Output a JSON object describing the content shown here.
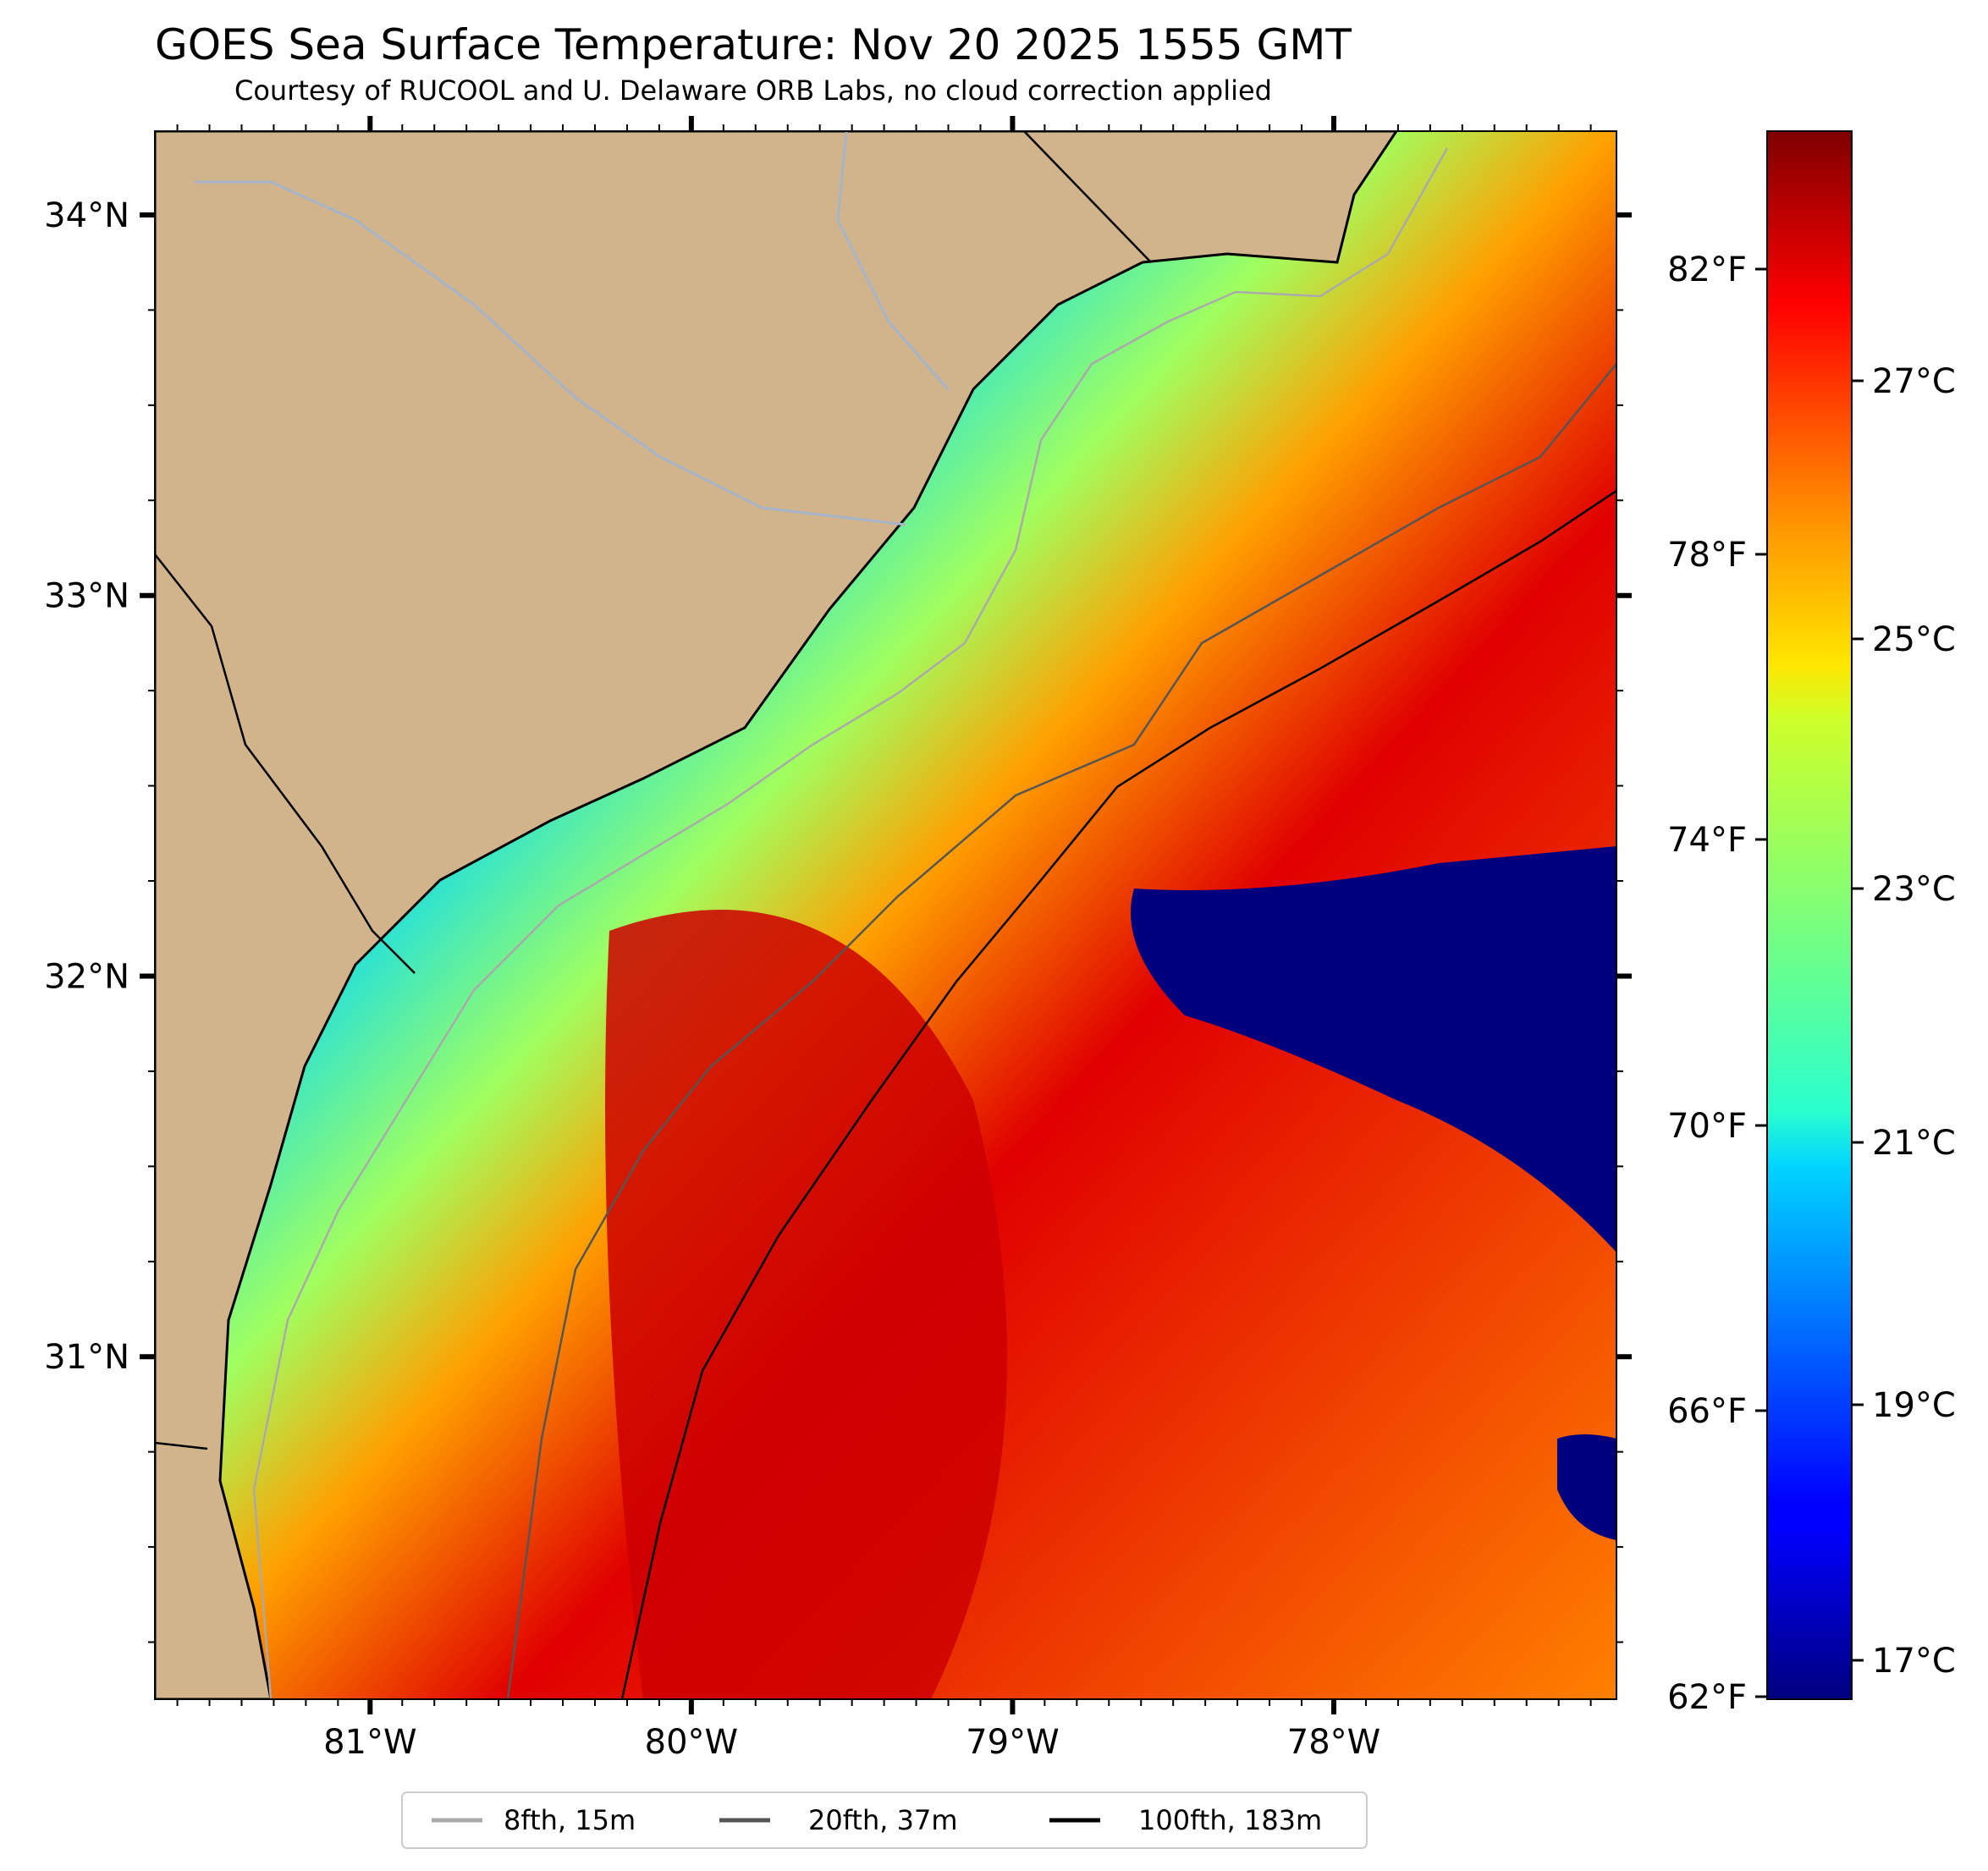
{
  "title": "GOES Sea Surface Temperature: Nov 20 2025 1555 GMT",
  "subtitle": "Courtesy of RUCOOL and U. Delaware ORB Labs, no cloud correction applied",
  "map": {
    "lon_range": [
      -81.67,
      -77.12
    ],
    "lat_range": [
      30.1,
      34.22
    ],
    "lon_ticks": [
      {
        "value": -81,
        "label": "81°W"
      },
      {
        "value": -80,
        "label": "80°W"
      },
      {
        "value": -79,
        "label": "79°W"
      },
      {
        "value": -78,
        "label": "78°W"
      }
    ],
    "lat_ticks": [
      {
        "value": 34,
        "label": "34°N"
      },
      {
        "value": 33,
        "label": "33°N"
      },
      {
        "value": 32,
        "label": "32°N"
      },
      {
        "value": 31,
        "label": "31°N"
      }
    ],
    "colors": {
      "land": "#d2b48c",
      "river": "#a5b4c8",
      "coast": "#000000"
    }
  },
  "colorbar": {
    "colormap": "jet",
    "celsius_ticks": [
      "27°C",
      "25°C",
      "23°C",
      "21°C",
      "19°C",
      "17°C"
    ],
    "fahrenheit_ticks": [
      "82°F",
      "78°F",
      "74°F",
      "70°F",
      "66°F",
      "62°F"
    ]
  },
  "legend": {
    "items": [
      {
        "label": "8fth, 15m",
        "color": "#aaaaaa"
      },
      {
        "label": "20fth, 37m",
        "color": "#555555"
      },
      {
        "label": "100fth, 183m",
        "color": "#000000"
      }
    ]
  }
}
